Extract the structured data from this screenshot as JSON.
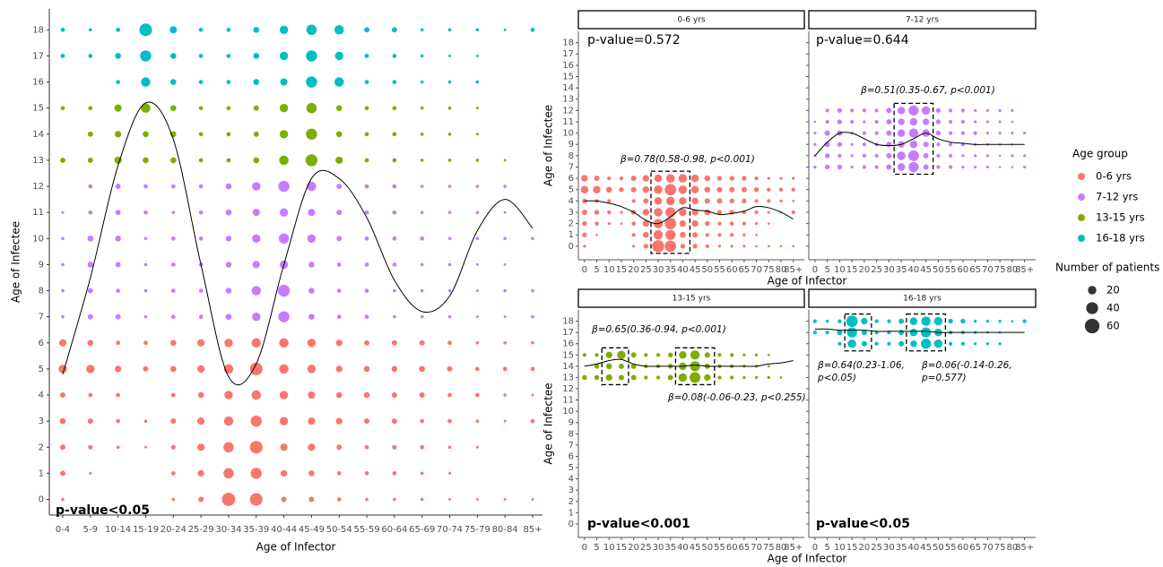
{
  "chart_data": [
    {
      "type": "bubble",
      "x_label": "Age of Infector",
      "y_label": "Age of Infectee",
      "p_value": "p-value<0.05",
      "legend_title": "Age group",
      "size_legend": {
        "title": "Number of patients",
        "values": [
          20,
          40,
          60
        ]
      },
      "categories": [
        "0-4",
        "5-9",
        "10-14",
        "15-19",
        "20-24",
        "25-29",
        "30-34",
        "35-39",
        "40-44",
        "45-49",
        "50-54",
        "55-59",
        "60-64",
        "65-69",
        "70-74",
        "75-79",
        "80-84",
        "85+"
      ],
      "ylim": [
        -0.6,
        18.8
      ],
      "yticks": [
        0,
        1,
        2,
        3,
        4,
        5,
        6,
        7,
        8,
        9,
        10,
        11,
        12,
        13,
        14,
        15,
        16,
        17,
        18
      ],
      "series": [
        {
          "name": "0-6 yrs",
          "color": "#F8766D",
          "y": [
            0,
            1,
            2,
            3,
            4,
            5,
            6
          ],
          "sizes": [
            [
              3,
              null,
              null,
              null,
              3,
              8,
              50,
              45,
              8,
              8,
              5,
              3,
              3,
              3,
              2,
              2,
              2,
              2
            ],
            [
              8,
              2,
              null,
              null,
              5,
              12,
              30,
              35,
              12,
              10,
              5,
              5,
              5,
              3,
              2,
              null,
              null,
              null
            ],
            [
              8,
              6,
              3,
              2,
              6,
              15,
              30,
              45,
              15,
              15,
              8,
              5,
              6,
              5,
              3,
              2,
              null,
              null
            ],
            [
              10,
              8,
              5,
              3,
              8,
              15,
              25,
              35,
              20,
              15,
              12,
              8,
              8,
              5,
              5,
              3,
              2,
              5
            ],
            [
              8,
              5,
              5,
              null,
              5,
              10,
              20,
              25,
              20,
              15,
              10,
              10,
              8,
              8,
              5,
              5,
              3,
              2
            ],
            [
              20,
              20,
              12,
              8,
              10,
              15,
              25,
              45,
              25,
              20,
              12,
              10,
              10,
              10,
              8,
              5,
              5,
              5
            ],
            [
              15,
              10,
              5,
              5,
              10,
              15,
              20,
              25,
              25,
              20,
              12,
              8,
              8,
              8,
              5,
              3,
              3,
              3
            ]
          ]
        },
        {
          "name": "7-12 yrs",
          "color": "#C77CFF",
          "y": [
            7,
            8,
            9,
            10,
            11,
            12
          ],
          "sizes": [
            [
              3,
              8,
              8,
              3,
              5,
              5,
              10,
              20,
              35,
              10,
              5,
              5,
              3,
              3,
              3,
              2,
              2,
              3
            ],
            [
              3,
              8,
              5,
              3,
              5,
              5,
              10,
              25,
              40,
              10,
              5,
              5,
              3,
              3,
              3,
              2,
              3,
              3
            ],
            [
              3,
              10,
              8,
              3,
              5,
              5,
              10,
              15,
              20,
              10,
              5,
              5,
              5,
              3,
              3,
              2,
              2,
              null
            ],
            [
              3,
              10,
              10,
              3,
              5,
              5,
              10,
              20,
              30,
              20,
              8,
              5,
              5,
              5,
              3,
              3,
              3,
              3
            ],
            [
              2,
              5,
              8,
              5,
              3,
              5,
              10,
              15,
              20,
              15,
              8,
              5,
              5,
              3,
              3,
              3,
              2,
              null
            ],
            [
              null,
              5,
              8,
              5,
              5,
              5,
              10,
              20,
              35,
              25,
              8,
              5,
              5,
              3,
              3,
              3,
              3,
              null
            ]
          ]
        },
        {
          "name": "13-15 yrs",
          "color": "#7CAE00",
          "y": [
            13,
            14,
            15
          ],
          "sizes": [
            [
              8,
              8,
              15,
              10,
              10,
              5,
              5,
              10,
              25,
              40,
              15,
              5,
              5,
              3,
              3,
              3,
              2,
              null
            ],
            [
              null,
              8,
              12,
              10,
              10,
              5,
              5,
              8,
              20,
              35,
              10,
              5,
              5,
              3,
              3,
              2,
              null,
              null
            ],
            [
              5,
              5,
              15,
              25,
              10,
              5,
              5,
              8,
              20,
              30,
              10,
              5,
              5,
              3,
              3,
              2,
              null,
              null
            ]
          ]
        },
        {
          "name": "16-18 yrs",
          "color": "#00BFC4",
          "y": [
            16,
            17,
            18
          ],
          "sizes": [
            [
              null,
              null,
              5,
              25,
              10,
              5,
              5,
              10,
              15,
              35,
              25,
              5,
              5,
              3,
              3,
              3,
              null,
              null
            ],
            [
              5,
              5,
              10,
              35,
              10,
              5,
              5,
              10,
              20,
              35,
              20,
              5,
              5,
              3,
              2,
              2,
              null,
              null
            ],
            [
              5,
              3,
              5,
              45,
              15,
              5,
              5,
              10,
              20,
              30,
              25,
              8,
              8,
              3,
              3,
              3,
              2,
              5
            ]
          ]
        }
      ],
      "trend": [
        4.8,
        8.5,
        12.8,
        15.2,
        13.8,
        9,
        4.7,
        5.2,
        9,
        12.3,
        12.3,
        10.8,
        8.4,
        7.2,
        7.8,
        10.3,
        11.5,
        10.4
      ]
    },
    {
      "type": "bubble",
      "title": "0-6 yrs",
      "p_value": "p-value=0.572",
      "x_label": "Age of Infector",
      "y_label": "Age of Infectee",
      "annotations": [
        "β=0.78(0.58-0.98, p<0.001)"
      ],
      "xlim": [
        -2.5,
        89.5
      ],
      "xticks": [
        0,
        5,
        10,
        15,
        20,
        25,
        30,
        35,
        40,
        45,
        50,
        55,
        60,
        65,
        70,
        75,
        80,
        {
          "value": 85,
          "label": "85+"
        }
      ],
      "ylim": [
        -1.2,
        19
      ],
      "yticks": [
        0,
        1,
        2,
        3,
        4,
        5,
        6,
        7,
        8,
        9,
        10,
        11,
        12,
        13,
        14,
        15,
        16,
        17,
        18
      ],
      "trend": [
        4,
        4,
        3.8,
        3.5,
        3,
        2.3,
        2,
        2.6,
        3.4,
        3.2,
        3.1,
        2.8,
        2.9,
        3.1,
        3.5,
        3.4,
        3,
        2.4
      ]
    },
    {
      "type": "bubble",
      "title": "7-12 yrs",
      "p_value": "p-value=0.644",
      "annotations": [
        "β=0.51(0.35-0.67, p<0.001)"
      ],
      "xlim": [
        -2.5,
        89.5
      ],
      "xticks": [
        0,
        5,
        10,
        15,
        20,
        25,
        30,
        35,
        40,
        45,
        50,
        55,
        60,
        65,
        70,
        75,
        80,
        {
          "value": 85,
          "label": "85+"
        }
      ],
      "ylim": [
        -1.2,
        19
      ],
      "yticks": [
        0,
        1,
        2,
        3,
        4,
        5,
        6,
        7,
        8,
        9,
        10,
        11,
        12,
        13,
        14,
        15,
        16,
        17,
        18
      ],
      "trend": [
        8,
        9.2,
        10,
        10,
        9.5,
        9,
        8.9,
        9,
        9.5,
        10,
        9.5,
        9.2,
        9.1,
        9,
        9,
        9,
        9,
        9
      ]
    },
    {
      "type": "bubble",
      "title": "13-15 yrs",
      "p_value": "p-value<0.001",
      "x_label": "Age of Infector",
      "y_label": "Age of Infectee",
      "annotations": [
        "β=0.65(0.36-0.94, p<0.001)",
        "β=0.08(-0.06-0.23, p<0.255)"
      ],
      "xlim": [
        -2.5,
        89.5
      ],
      "xticks": [
        0,
        5,
        10,
        15,
        20,
        25,
        30,
        35,
        40,
        45,
        50,
        55,
        60,
        65,
        70,
        75,
        80,
        {
          "value": 85,
          "label": "85+"
        }
      ],
      "ylim": [
        -1.2,
        19
      ],
      "yticks": [
        0,
        1,
        2,
        3,
        4,
        5,
        6,
        7,
        8,
        9,
        10,
        11,
        12,
        13,
        14,
        15,
        16,
        17,
        18
      ],
      "trend": [
        14,
        14.2,
        14.5,
        14.6,
        14.2,
        14,
        14,
        14,
        14,
        14.1,
        14,
        14,
        14,
        14,
        14,
        14.2,
        14.3,
        14.5
      ]
    },
    {
      "type": "bubble",
      "title": "16-18 yrs",
      "p_value": "p-value<0.05",
      "annotations": [
        "β=0.64(0.23-1.06,",
        "p<0.05)",
        "β=0.06(-0.14-0.26,",
        "p=0.577)"
      ],
      "xlim": [
        -2.5,
        89.5
      ],
      "xticks": [
        0,
        5,
        10,
        15,
        20,
        25,
        30,
        35,
        40,
        45,
        50,
        55,
        60,
        65,
        70,
        75,
        80,
        {
          "value": 85,
          "label": "85+"
        }
      ],
      "ylim": [
        -1.2,
        19
      ],
      "yticks": [
        0,
        1,
        2,
        3,
        4,
        5,
        6,
        7,
        8,
        9,
        10,
        11,
        12,
        13,
        14,
        15,
        16,
        17,
        18
      ],
      "trend": [
        17.3,
        17.3,
        17.2,
        17.2,
        17.2,
        17.1,
        17.1,
        17.1,
        17.1,
        17.1,
        17,
        17,
        17,
        17,
        17,
        17,
        17,
        17
      ]
    }
  ]
}
